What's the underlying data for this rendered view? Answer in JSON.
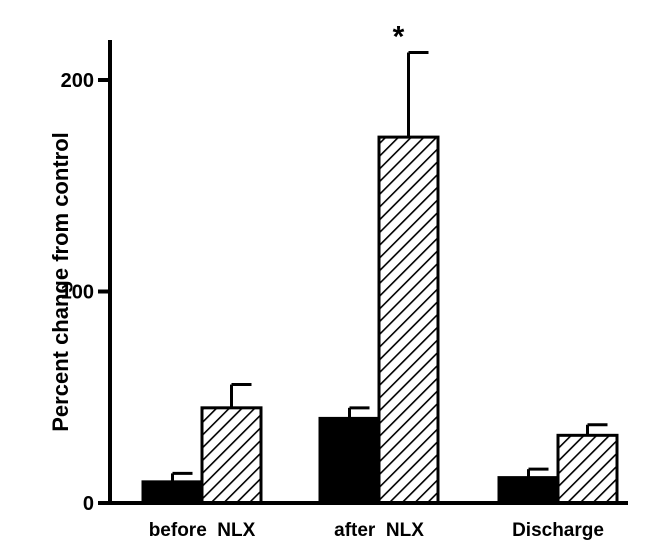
{
  "chart_data": {
    "type": "bar",
    "categories": [
      "before  NLX",
      "after  NLX",
      "Discharge"
    ],
    "series": [
      {
        "values": [
          10,
          40,
          12
        ],
        "errors": [
          4,
          5,
          4
        ],
        "fill": "#000000"
      },
      {
        "values": [
          45,
          173,
          32
        ],
        "errors": [
          11,
          40,
          5
        ],
        "fill": "#ffffff",
        "pattern": "diagonal-hatch"
      }
    ],
    "ylabel": "Percent change from control",
    "yticks": [
      0,
      100,
      200
    ],
    "ylim": [
      0,
      230
    ],
    "annotations": [
      {
        "text": "*",
        "category_index": 1,
        "series_index": 1
      }
    ],
    "grid": false,
    "legend": "none"
  }
}
